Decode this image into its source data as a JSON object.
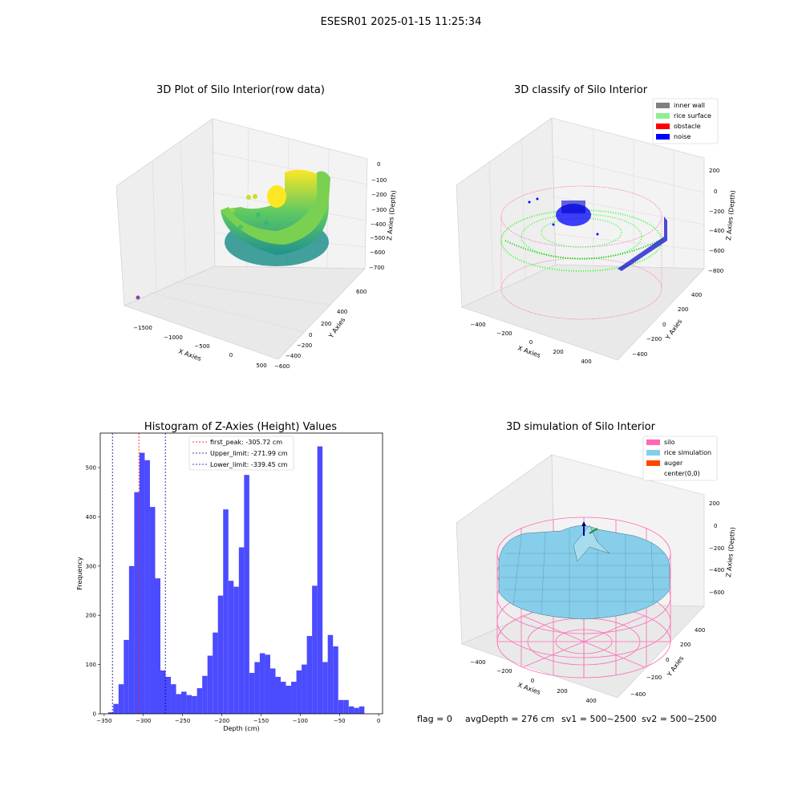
{
  "figure_title": "ESESR01 2025-01-15 11:25:34",
  "footer": {
    "flag": "flag = 0",
    "avg_depth": "avgDepth = 276 cm",
    "sv1": "sv1 = 500~2500",
    "sv2": "sv2 = 500~2500"
  },
  "colors": {
    "hist_bar": "#4b4bff",
    "first_peak_line": "#ff0000",
    "limit_line": "#00008b",
    "inner_wall": "#808080",
    "rice_surface": "#90ee90",
    "obstacle": "#ff0000",
    "noise": "#0000ff",
    "silo": "#ff69b4",
    "rice_simulation": "#87ceeb",
    "auger": "#ff4500"
  },
  "panel_raw": {
    "title": "3D Plot of Silo Interior(row data)",
    "xlabel": "X Axies",
    "ylabel": "Y Axies",
    "zlabel": "Z Axies (Depth)",
    "x_ticks": [
      "−1500",
      "−1000",
      "−500",
      "0",
      "500"
    ],
    "y_ticks": [
      "600",
      "400",
      "200",
      "0",
      "−200",
      "−400",
      "−600"
    ],
    "z_ticks": [
      "0",
      "−100",
      "−200",
      "−300",
      "−400",
      "−500",
      "−600",
      "−700"
    ]
  },
  "panel_classify": {
    "title": "3D classify of Silo Interior",
    "xlabel": "X Axies",
    "ylabel": "Y Axies",
    "zlabel": "Z Axies (Depth)",
    "x_ticks": [
      "−400",
      "−200",
      "0",
      "200",
      "400"
    ],
    "y_ticks": [
      "400",
      "200",
      "0",
      "−200",
      "−400"
    ],
    "z_ticks": [
      "200",
      "0",
      "−200",
      "−400",
      "−600",
      "−800"
    ],
    "legend": [
      "inner wall",
      "rice surface",
      "obstacle",
      "noise"
    ]
  },
  "panel_sim": {
    "title": "3D simulation of Silo Interior",
    "xlabel": "X Axies",
    "ylabel": "Y Axies",
    "zlabel": "Z Axies (Depth)",
    "x_ticks": [
      "−400",
      "−200",
      "0",
      "200",
      "400"
    ],
    "y_ticks": [
      "400",
      "200",
      "0",
      "−200",
      "−400"
    ],
    "z_ticks": [
      "200",
      "0",
      "−200",
      "−400",
      "−600"
    ],
    "legend": [
      "silo",
      "rice simulation",
      "auger",
      "center(0,0)"
    ]
  },
  "chart_data": {
    "type": "bar",
    "title": "Histogram of Z-Axies (Height) Values",
    "xlabel": "Depth (cm)",
    "ylabel": "Frequency",
    "xlim": [
      -355,
      5
    ],
    "ylim": [
      0,
      570
    ],
    "x_ticks": [
      -350,
      -300,
      -250,
      -200,
      -150,
      -100,
      -50,
      0
    ],
    "y_ticks": [
      0,
      100,
      200,
      300,
      400,
      500
    ],
    "bin_start": -345,
    "bin_width": 6.67,
    "values": [
      3,
      20,
      60,
      150,
      300,
      450,
      530,
      515,
      420,
      275,
      88,
      75,
      60,
      40,
      45,
      38,
      36,
      52,
      77,
      118,
      165,
      240,
      415,
      270,
      258,
      338,
      485,
      83,
      105,
      123,
      120,
      92,
      75,
      65,
      57,
      65,
      88,
      100,
      158,
      260,
      543,
      105,
      160,
      137,
      28,
      28,
      15,
      12,
      15
    ],
    "lines": [
      {
        "label": "first_peak: -305.72 cm",
        "x": -305.72,
        "style": "first_peak"
      },
      {
        "label": "Upper_limit: -271.99 cm",
        "x": -271.99,
        "style": "limit"
      },
      {
        "label": "Lower_limit: -339.45 cm",
        "x": -339.45,
        "style": "limit"
      }
    ],
    "legend_position": "top-center",
    "grid": false
  }
}
